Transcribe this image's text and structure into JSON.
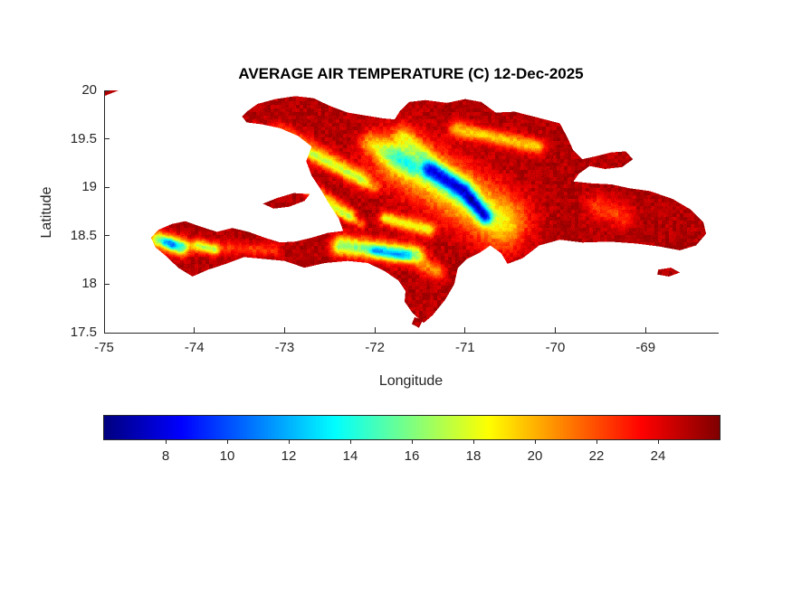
{
  "figure": {
    "title": "AVERAGE AIR TEMPERATURE (C) 12-Dec-2025",
    "xlabel": "Longitude",
    "ylabel": "Latitude"
  },
  "chart_data": {
    "type": "heatmap",
    "title": "AVERAGE AIR TEMPERATURE (C) 12-Dec-2025",
    "xlabel": "Longitude",
    "ylabel": "Latitude",
    "region": "Hispaniola (Haiti and Dominican Republic), sliver of eastern Cuba at top-left corner",
    "units": "degrees Celsius",
    "xlim": [
      -75,
      -68.2
    ],
    "ylim": [
      17.5,
      20
    ],
    "x_ticks": [
      -75,
      -74,
      -73,
      -72,
      -71,
      -70,
      -69
    ],
    "y_ticks": [
      20,
      19.5,
      19,
      18.5,
      18,
      17.5
    ],
    "grid": false,
    "sea_color": "#ffffff",
    "colorbar": {
      "orientation": "horizontal",
      "colormap": "jet",
      "range": [
        6,
        26
      ],
      "ticks": [
        8,
        10,
        12,
        14,
        16,
        18,
        20,
        22,
        24
      ]
    },
    "base_temp_c": 25,
    "noise_amp_c": 1.4,
    "land_polygons": {
      "hispaniola": [
        [
          -73.42,
          19.78
        ],
        [
          -73.3,
          19.86
        ],
        [
          -73.1,
          19.91
        ],
        [
          -72.88,
          19.94
        ],
        [
          -72.68,
          19.92
        ],
        [
          -72.5,
          19.84
        ],
        [
          -72.3,
          19.77
        ],
        [
          -72.1,
          19.74
        ],
        [
          -71.9,
          19.71
        ],
        [
          -71.78,
          19.7
        ],
        [
          -71.72,
          19.79
        ],
        [
          -71.62,
          19.88
        ],
        [
          -71.44,
          19.9
        ],
        [
          -71.2,
          19.87
        ],
        [
          -71.0,
          19.91
        ],
        [
          -70.82,
          19.88
        ],
        [
          -70.66,
          19.77
        ],
        [
          -70.45,
          19.78
        ],
        [
          -70.2,
          19.72
        ],
        [
          -69.95,
          19.66
        ],
        [
          -69.87,
          19.52
        ],
        [
          -69.8,
          19.38
        ],
        [
          -69.7,
          19.29
        ],
        [
          -69.55,
          19.32
        ],
        [
          -69.38,
          19.36
        ],
        [
          -69.22,
          19.37
        ],
        [
          -69.14,
          19.29
        ],
        [
          -69.26,
          19.21
        ],
        [
          -69.45,
          19.19
        ],
        [
          -69.62,
          19.22
        ],
        [
          -69.74,
          19.14
        ],
        [
          -69.8,
          19.06
        ],
        [
          -69.6,
          19.04
        ],
        [
          -69.38,
          19.03
        ],
        [
          -69.18,
          18.99
        ],
        [
          -68.95,
          18.96
        ],
        [
          -68.7,
          18.88
        ],
        [
          -68.5,
          18.77
        ],
        [
          -68.36,
          18.64
        ],
        [
          -68.33,
          18.52
        ],
        [
          -68.44,
          18.4
        ],
        [
          -68.62,
          18.35
        ],
        [
          -68.85,
          18.39
        ],
        [
          -69.1,
          18.42
        ],
        [
          -69.4,
          18.44
        ],
        [
          -69.7,
          18.43
        ],
        [
          -69.95,
          18.46
        ],
        [
          -70.18,
          18.4
        ],
        [
          -70.36,
          18.27
        ],
        [
          -70.53,
          18.21
        ],
        [
          -70.6,
          18.32
        ],
        [
          -70.72,
          18.4
        ],
        [
          -70.83,
          18.33
        ],
        [
          -70.98,
          18.26
        ],
        [
          -71.08,
          18.17
        ],
        [
          -71.12,
          18.0
        ],
        [
          -71.22,
          17.84
        ],
        [
          -71.36,
          17.68
        ],
        [
          -71.46,
          17.6
        ],
        [
          -71.58,
          17.7
        ],
        [
          -71.67,
          17.82
        ],
        [
          -71.66,
          17.93
        ],
        [
          -71.74,
          18.04
        ],
        [
          -71.9,
          18.14
        ],
        [
          -72.08,
          18.22
        ],
        [
          -72.3,
          18.24
        ],
        [
          -72.55,
          18.22
        ],
        [
          -72.78,
          18.17
        ],
        [
          -73.0,
          18.24
        ],
        [
          -73.22,
          18.26
        ],
        [
          -73.45,
          18.28
        ],
        [
          -73.65,
          18.21
        ],
        [
          -73.85,
          18.15
        ],
        [
          -74.02,
          18.08
        ],
        [
          -74.18,
          18.17
        ],
        [
          -74.3,
          18.28
        ],
        [
          -74.43,
          18.38
        ],
        [
          -74.48,
          18.48
        ],
        [
          -74.4,
          18.56
        ],
        [
          -74.25,
          18.62
        ],
        [
          -74.1,
          18.65
        ],
        [
          -73.92,
          18.59
        ],
        [
          -73.75,
          18.54
        ],
        [
          -73.58,
          18.58
        ],
        [
          -73.4,
          18.54
        ],
        [
          -73.22,
          18.48
        ],
        [
          -73.05,
          18.43
        ],
        [
          -72.88,
          18.44
        ],
        [
          -72.7,
          18.48
        ],
        [
          -72.52,
          18.53
        ],
        [
          -72.35,
          18.55
        ],
        [
          -72.4,
          18.68
        ],
        [
          -72.5,
          18.82
        ],
        [
          -72.6,
          18.98
        ],
        [
          -72.7,
          19.12
        ],
        [
          -72.76,
          19.27
        ],
        [
          -72.7,
          19.42
        ],
        [
          -72.85,
          19.53
        ],
        [
          -73.05,
          19.61
        ],
        [
          -73.25,
          19.65
        ],
        [
          -73.42,
          19.67
        ],
        [
          -73.47,
          19.73
        ]
      ],
      "ile-de-la-gonave": [
        [
          -73.24,
          18.83
        ],
        [
          -73.08,
          18.89
        ],
        [
          -72.9,
          18.94
        ],
        [
          -72.72,
          18.93
        ],
        [
          -72.78,
          18.86
        ],
        [
          -72.95,
          18.8
        ],
        [
          -73.12,
          18.78
        ]
      ],
      "isla-saona": [
        [
          -68.86,
          18.15
        ],
        [
          -68.72,
          18.17
        ],
        [
          -68.62,
          18.12
        ],
        [
          -68.74,
          18.08
        ],
        [
          -68.87,
          18.1
        ]
      ],
      "isla-beata": [
        [
          -71.56,
          17.66
        ],
        [
          -71.47,
          17.63
        ],
        [
          -71.51,
          17.55
        ],
        [
          -71.59,
          17.59
        ]
      ],
      "cuba-corner": [
        [
          -75.0,
          19.94
        ],
        [
          -74.84,
          20.0
        ],
        [
          -75.0,
          20.0
        ]
      ]
    },
    "cold_ridges": [
      {
        "name": "cordillera-central-broad",
        "x1": -71.7,
        "y1": 19.3,
        "x2": -70.6,
        "y2": 18.65,
        "w": 0.28,
        "drop": 6.5
      },
      {
        "name": "cordillera-central-core-west",
        "x1": -71.38,
        "y1": 19.18,
        "x2": -71.02,
        "y2": 18.97,
        "w": 0.1,
        "drop": 11
      },
      {
        "name": "cordillera-central-core-south",
        "x1": -70.92,
        "y1": 18.86,
        "x2": -70.78,
        "y2": 18.7,
        "w": 0.08,
        "drop": 11
      },
      {
        "name": "cordillera-central-northwest",
        "x1": -72.05,
        "y1": 19.45,
        "x2": -71.6,
        "y2": 19.22,
        "w": 0.12,
        "drop": 4.5
      },
      {
        "name": "cordillera-septentrional",
        "x1": -71.1,
        "y1": 19.6,
        "x2": -70.2,
        "y2": 19.42,
        "w": 0.08,
        "drop": 5.5
      },
      {
        "name": "massif-du-nord-1",
        "x1": -73.05,
        "y1": 19.55,
        "x2": -72.15,
        "y2": 19.1,
        "w": 0.1,
        "drop": 4.5
      },
      {
        "name": "massif-du-nord-2",
        "x1": -72.8,
        "y1": 19.38,
        "x2": -72.0,
        "y2": 19.0,
        "w": 0.06,
        "drop": 3.5
      },
      {
        "name": "montagnes-noires",
        "x1": -72.78,
        "y1": 19.02,
        "x2": -72.28,
        "y2": 18.72,
        "w": 0.07,
        "drop": 5.5
      },
      {
        "name": "chaine-des-matheux",
        "x1": -72.5,
        "y1": 18.78,
        "x2": -72.15,
        "y2": 18.62,
        "w": 0.05,
        "drop": 3.5
      },
      {
        "name": "sierra-de-neiba",
        "x1": -71.88,
        "y1": 18.68,
        "x2": -71.4,
        "y2": 18.56,
        "w": 0.07,
        "drop": 6.5
      },
      {
        "name": "massif-de-la-selle-bahoruco",
        "x1": -72.38,
        "y1": 18.4,
        "x2": -71.55,
        "y2": 18.3,
        "w": 0.1,
        "drop": 9
      },
      {
        "name": "la-selle-core",
        "x1": -72.0,
        "y1": 18.34,
        "x2": -71.65,
        "y2": 18.29,
        "w": 0.055,
        "drop": 4.5
      },
      {
        "name": "bahoruco-east",
        "x1": -71.42,
        "y1": 18.18,
        "x2": -71.3,
        "y2": 18.12,
        "w": 0.09,
        "drop": 4
      },
      {
        "name": "massif-de-la-hotte",
        "x1": -74.4,
        "y1": 18.46,
        "x2": -74.15,
        "y2": 18.38,
        "w": 0.09,
        "drop": 8.5
      },
      {
        "name": "pic-macaya-core",
        "x1": -74.32,
        "y1": 18.44,
        "x2": -74.24,
        "y2": 18.41,
        "w": 0.045,
        "drop": 4
      },
      {
        "name": "hotte-east",
        "x1": -73.95,
        "y1": 18.4,
        "x2": -73.78,
        "y2": 18.35,
        "w": 0.06,
        "drop": 5.5
      },
      {
        "name": "tiburon-spine",
        "x1": -74.25,
        "y1": 18.4,
        "x2": -73.1,
        "y2": 18.35,
        "w": 0.07,
        "drop": 2.5
      },
      {
        "name": "cordillera-oriental",
        "x1": -69.55,
        "y1": 18.8,
        "x2": -69.25,
        "y2": 18.7,
        "w": 0.12,
        "drop": 2.5
      },
      {
        "name": "nord-ouest-hills",
        "x1": -73.32,
        "y1": 19.58,
        "x2": -73.05,
        "y2": 19.45,
        "w": 0.07,
        "drop": 3
      },
      {
        "name": "monte-cristi-border-hills",
        "x1": -71.7,
        "y1": 19.55,
        "x2": -71.45,
        "y2": 19.35,
        "w": 0.08,
        "drop": 3
      }
    ]
  }
}
